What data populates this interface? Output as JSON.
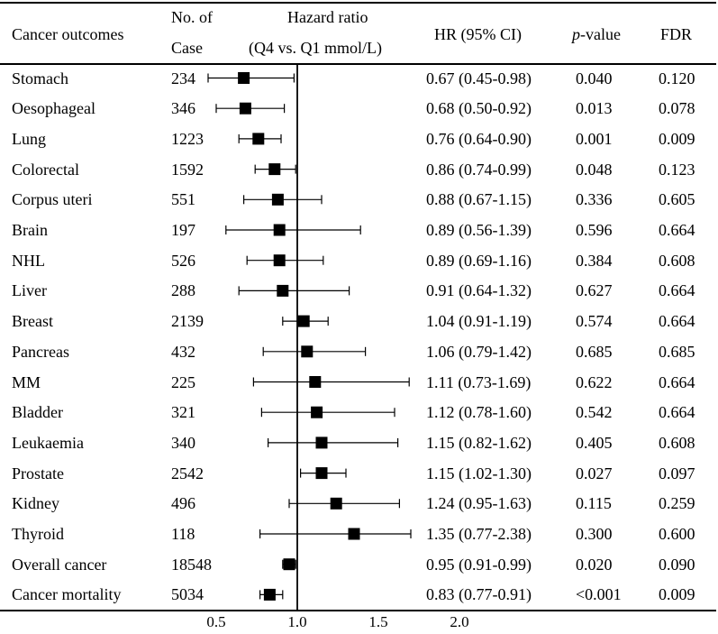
{
  "headers": {
    "outcome": "Cancer outcomes",
    "cases_line1": "No. of",
    "cases_line2": "Case",
    "hr_line1": "Hazard ratio",
    "hr_line2": "(Q4 vs. Q1 mmol/L)",
    "hr_ci": "HR (95% CI)",
    "p_italic": "p",
    "p_rest": "-value",
    "fdr": "FDR"
  },
  "chart_data": {
    "type": "forest",
    "reference_line": 1.0,
    "xlim": [
      0.5,
      2.0
    ],
    "x_ticks": [
      "0.5",
      "1.0",
      "1.5",
      "2.0"
    ],
    "rows": [
      {
        "outcome": "Stomach",
        "cases": "234",
        "hr": 0.67,
        "lo": 0.45,
        "hi": 0.98,
        "hr_text": "0.67 (0.45-0.98)",
        "p": "0.040",
        "fdr": "0.120"
      },
      {
        "outcome": "Oesophageal",
        "cases": "346",
        "hr": 0.68,
        "lo": 0.5,
        "hi": 0.92,
        "hr_text": "0.68 (0.50-0.92)",
        "p": "0.013",
        "fdr": "0.078"
      },
      {
        "outcome": "Lung",
        "cases": "1223",
        "hr": 0.76,
        "lo": 0.64,
        "hi": 0.9,
        "hr_text": "0.76 (0.64-0.90)",
        "p": "0.001",
        "fdr": "0.009"
      },
      {
        "outcome": "Colorectal",
        "cases": "1592",
        "hr": 0.86,
        "lo": 0.74,
        "hi": 0.99,
        "hr_text": "0.86 (0.74-0.99)",
        "p": "0.048",
        "fdr": "0.123"
      },
      {
        "outcome": "Corpus uteri",
        "cases": "551",
        "hr": 0.88,
        "lo": 0.67,
        "hi": 1.15,
        "hr_text": "0.88 (0.67-1.15)",
        "p": "0.336",
        "fdr": "0.605"
      },
      {
        "outcome": "Brain",
        "cases": "197",
        "hr": 0.89,
        "lo": 0.56,
        "hi": 1.39,
        "hr_text": "0.89 (0.56-1.39)",
        "p": "0.596",
        "fdr": "0.664"
      },
      {
        "outcome": "NHL",
        "cases": "526",
        "hr": 0.89,
        "lo": 0.69,
        "hi": 1.16,
        "hr_text": "0.89 (0.69-1.16)",
        "p": "0.384",
        "fdr": "0.608"
      },
      {
        "outcome": "Liver",
        "cases": "288",
        "hr": 0.91,
        "lo": 0.64,
        "hi": 1.32,
        "hr_text": "0.91 (0.64-1.32)",
        "p": "0.627",
        "fdr": "0.664"
      },
      {
        "outcome": "Breast",
        "cases": "2139",
        "hr": 1.04,
        "lo": 0.91,
        "hi": 1.19,
        "hr_text": "1.04 (0.91-1.19)",
        "p": "0.574",
        "fdr": "0.664"
      },
      {
        "outcome": "Pancreas",
        "cases": "432",
        "hr": 1.06,
        "lo": 0.79,
        "hi": 1.42,
        "hr_text": "1.06 (0.79-1.42)",
        "p": "0.685",
        "fdr": "0.685"
      },
      {
        "outcome": "MM",
        "cases": "225",
        "hr": 1.11,
        "lo": 0.73,
        "hi": 1.69,
        "hr_text": "1.11 (0.73-1.69)",
        "p": "0.622",
        "fdr": "0.664"
      },
      {
        "outcome": "Bladder",
        "cases": "321",
        "hr": 1.12,
        "lo": 0.78,
        "hi": 1.6,
        "hr_text": "1.12 (0.78-1.60)",
        "p": "0.542",
        "fdr": "0.664"
      },
      {
        "outcome": "Leukaemia",
        "cases": "340",
        "hr": 1.15,
        "lo": 0.82,
        "hi": 1.62,
        "hr_text": "1.15 (0.82-1.62)",
        "p": "0.405",
        "fdr": "0.608"
      },
      {
        "outcome": "Prostate",
        "cases": "2542",
        "hr": 1.15,
        "lo": 1.02,
        "hi": 1.3,
        "hr_text": "1.15 (1.02-1.30)",
        "p": "0.027",
        "fdr": "0.097"
      },
      {
        "outcome": "Kidney",
        "cases": "496",
        "hr": 1.24,
        "lo": 0.95,
        "hi": 1.63,
        "hr_text": "1.24 (0.95-1.63)",
        "p": "0.115",
        "fdr": "0.259"
      },
      {
        "outcome": "Thyroid",
        "cases": "118",
        "hr": 1.35,
        "lo": 0.77,
        "hi": 2.38,
        "hr_text": "1.35 (0.77-2.38)",
        "p": "0.300",
        "fdr": "0.600"
      },
      {
        "outcome": "Overall cancer",
        "cases": "18548",
        "hr": 0.95,
        "lo": 0.91,
        "hi": 0.99,
        "hr_text": "0.95 (0.91-0.99)",
        "p": "0.020",
        "fdr": "0.090"
      },
      {
        "outcome": "Cancer mortality",
        "cases": "5034",
        "hr": 0.83,
        "lo": 0.77,
        "hi": 0.91,
        "hr_text": "0.83 (0.77-0.91)",
        "p": "<0.001",
        "fdr": "0.009"
      }
    ]
  }
}
